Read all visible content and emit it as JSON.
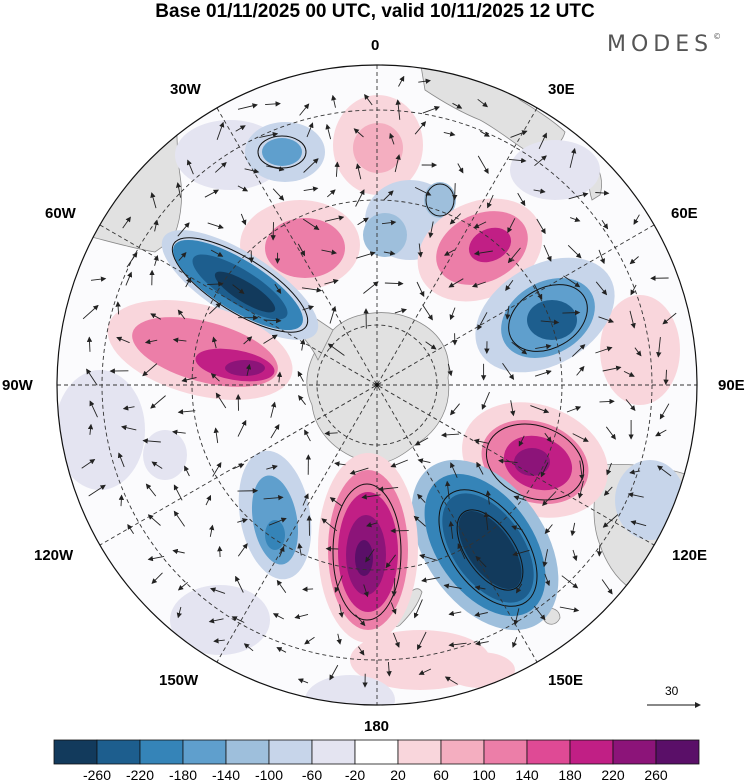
{
  "title": "Base 01/11/2025 00 UTC, valid 10/11/2025 12 UTC",
  "brand": "MODES",
  "brand_mark": "©",
  "longitude_labels": {
    "lon_0": "0",
    "lon_30e": "30E",
    "lon_60e": "60E",
    "lon_90e": "90E",
    "lon_120e": "120E",
    "lon_150e": "150E",
    "lon_180": "180",
    "lon_150w": "150W",
    "lon_120w": "120W",
    "lon_90w": "90W",
    "lon_60w": "60W",
    "lon_30w": "30W"
  },
  "colorbar": {
    "labels": [
      "-260",
      "-220",
      "-180",
      "-140",
      "-100",
      "-60",
      "-20",
      "20",
      "60",
      "100",
      "140",
      "180",
      "220",
      "260"
    ],
    "colors": [
      "#123a5c",
      "#1d5e8e",
      "#3584b8",
      "#5f9fcd",
      "#9ebfdc",
      "#c7d5ea",
      "#e4e4f1",
      "#ffffff",
      "#f9d6dc",
      "#f4aec0",
      "#ec7ea8",
      "#df4a95",
      "#c11f85",
      "#8c1479",
      "#5a0f68"
    ]
  },
  "reference_vector": {
    "label": "30"
  },
  "anomaly_centers": [
    {
      "name": "north-low",
      "lon": "10E",
      "value": -120
    },
    {
      "name": "north-high",
      "lon": "0",
      "value": 80
    },
    {
      "name": "ne-high",
      "lon": "45E",
      "value": 190
    },
    {
      "name": "east-low",
      "lon": "75E",
      "value": -200
    },
    {
      "name": "se-high",
      "lon": "110E",
      "value": 240
    },
    {
      "name": "south-low",
      "lon": "145E",
      "value": -270
    },
    {
      "name": "south-high",
      "lon": "175W",
      "value": 260
    },
    {
      "name": "sw-low",
      "lon": "140W",
      "value": -160
    },
    {
      "name": "west-high",
      "lon": "80W",
      "value": 230
    },
    {
      "name": "nw-low",
      "lon": "60W",
      "value": -270
    },
    {
      "name": "nnw-high",
      "lon": "30W",
      "value": 140
    },
    {
      "name": "far-north-low",
      "lon": "20W",
      "value": -140
    }
  ]
}
